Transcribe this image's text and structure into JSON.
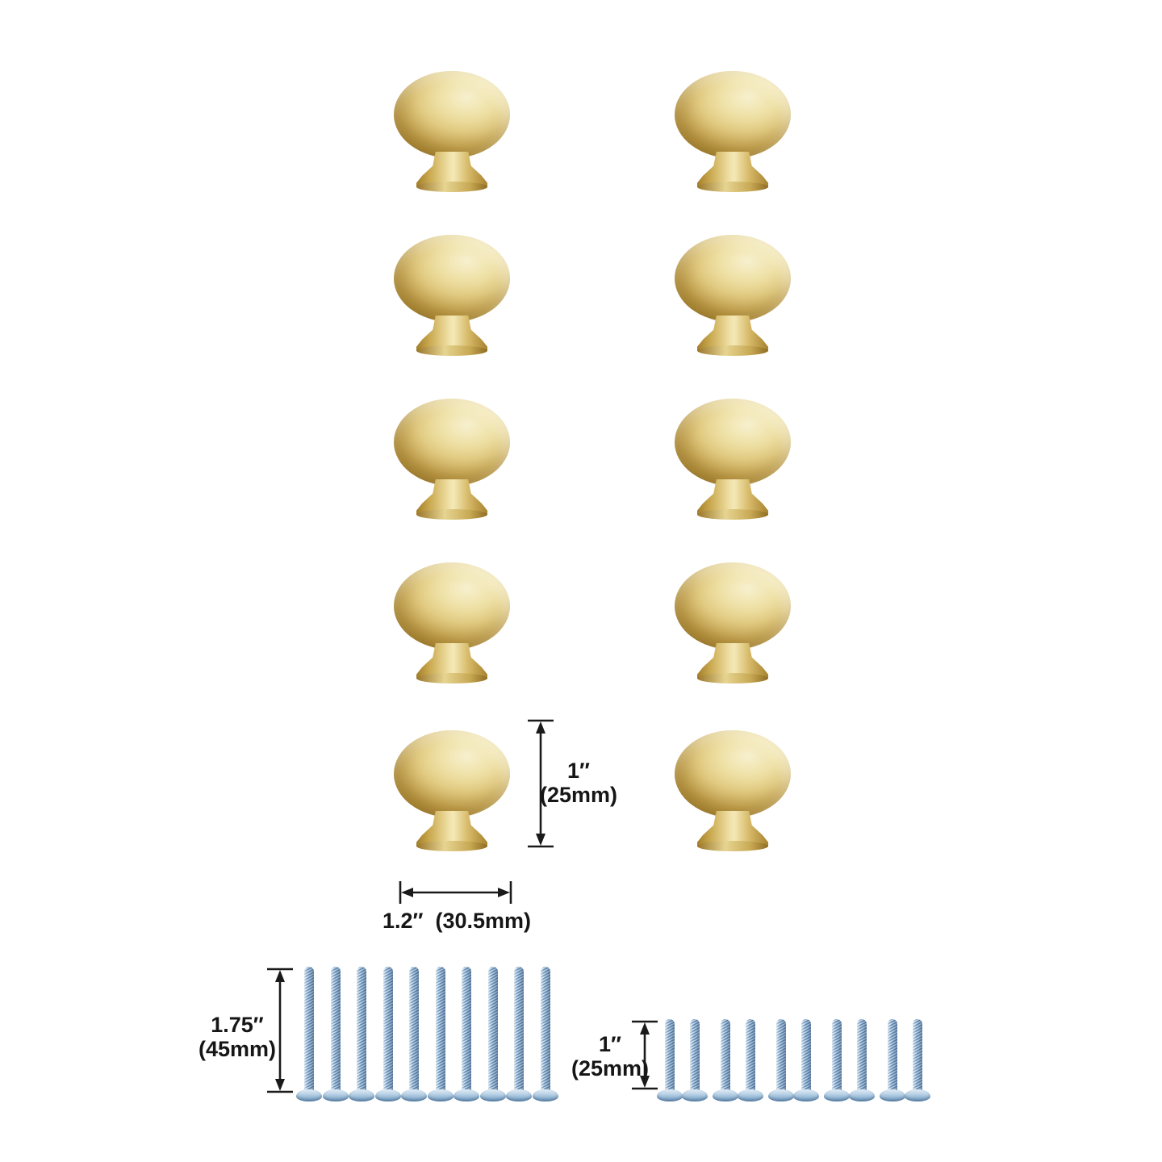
{
  "product_display": {
    "knobs": {
      "count": 10,
      "rows": 5,
      "columns": 2,
      "finish_highlight_color": "#f5eecb",
      "finish_color": "#d9c272",
      "finish_shadow_color": "#a8842f"
    },
    "screws_long": {
      "count": 10,
      "plating_color": "#8fb3d4",
      "plating_light_color": "#cadcec",
      "plating_dark_color": "#5580ab"
    },
    "screws_short": {
      "count": 10,
      "plating_color": "#8fb3d4",
      "plating_light_color": "#cadcec",
      "plating_dark_color": "#5580ab"
    }
  },
  "annotations": {
    "knob_height": {
      "inches": "1″",
      "mm": "(25mm)"
    },
    "knob_width": {
      "inches": "1.2″",
      "mm": "(30.5mm)"
    },
    "screw_long_length": {
      "inches": "1.75″",
      "mm": "(45mm)"
    },
    "screw_short_length": {
      "inches": "1″",
      "mm": "(25mm)"
    }
  },
  "colors": {
    "background": "#ffffff",
    "dimension_lines": "#1a1a1a",
    "text": "#161616"
  }
}
